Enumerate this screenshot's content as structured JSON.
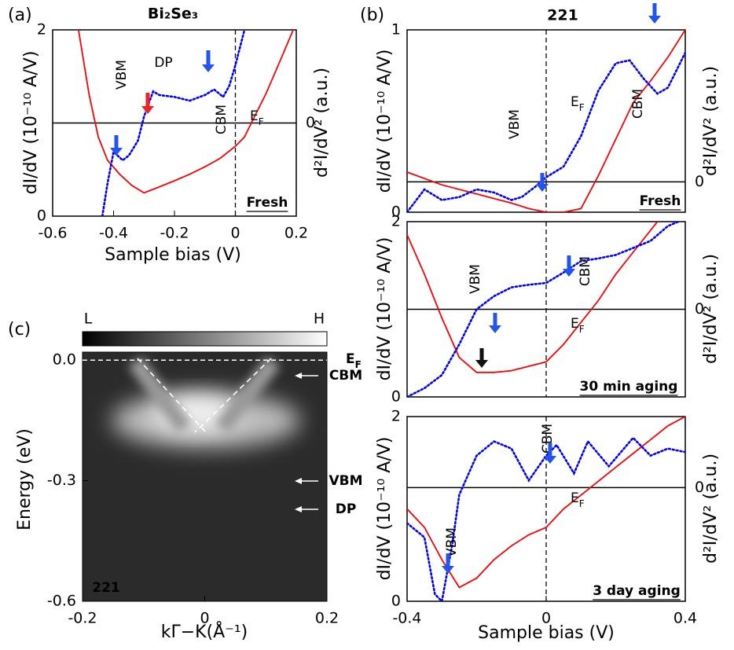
{
  "chart_data": [
    {
      "type": "line",
      "panel_label": "(a)",
      "title": "Bi₂Se₃",
      "xlabel": "Sample bias (V)",
      "ylabel": "dI/dV (10⁻¹⁰ A/V)",
      "y2label": "d²I/dV² (a.u.)",
      "xlim": [
        -0.6,
        0.2
      ],
      "xticks": [
        -0.6,
        -0.4,
        -0.2,
        0,
        0.2
      ],
      "ylim": [
        0,
        2
      ],
      "yticks": [
        0,
        2
      ],
      "y2lim": [
        -1,
        1
      ],
      "y2ticks": [
        0
      ],
      "series": [
        {
          "color": "#ff0000",
          "style": "solid",
          "x": [
            -0.515,
            -0.48,
            -0.45,
            -0.42,
            -0.38,
            -0.34,
            -0.3,
            -0.26,
            -0.2,
            -0.15,
            -0.1,
            -0.05,
            0,
            0.03,
            0.06,
            0.1,
            0.15,
            0.19
          ],
          "values": [
            2.0,
            1.3,
            0.85,
            0.6,
            0.45,
            0.33,
            0.25,
            0.3,
            0.38,
            0.45,
            0.53,
            0.62,
            0.75,
            0.85,
            1.05,
            1.31,
            1.69,
            2.0
          ]
        },
        {
          "color": "#0000ff",
          "style": "dotted",
          "axis": "y2",
          "x": [
            -0.437,
            -0.42,
            -0.4,
            -0.37,
            -0.35,
            -0.32,
            -0.3,
            -0.27,
            -0.25,
            -0.2,
            -0.15,
            -0.1,
            -0.07,
            -0.04,
            -0.02,
            0,
            0.03
          ],
          "values": [
            -1.0,
            -0.65,
            -0.31,
            -0.4,
            -0.35,
            -0.19,
            0.07,
            0.34,
            0.3,
            0.28,
            0.24,
            0.3,
            0.36,
            0.28,
            0.4,
            0.62,
            1.0
          ]
        }
      ],
      "annotations": [
        "VBM",
        "DP",
        "CBM",
        "Fresh"
      ],
      "ef_label": {
        "main": "E",
        "sub": "F"
      }
    },
    {
      "type": "line",
      "panel_label": "(b)",
      "title": "221",
      "ylabel": "dI/dV (10⁻¹⁰ A/V)",
      "y2label": "d²I/dV² (a.u.)",
      "xlim": [
        -0.4,
        0.4
      ],
      "ylim": [
        0,
        1
      ],
      "yticks": [
        0,
        1
      ],
      "y2lim": [
        -0.2,
        1
      ],
      "y2ticks": [
        0
      ],
      "series": [
        {
          "color": "#ff0000",
          "style": "solid",
          "x": [
            -0.4,
            -0.3,
            -0.2,
            -0.1,
            -0.05,
            0,
            0.05,
            0.1,
            0.15,
            0.2,
            0.25,
            0.3,
            0.35,
            0.4
          ],
          "values": [
            0.22,
            0.15,
            0.1,
            0.05,
            0.02,
            0.0,
            0.0,
            0.02,
            0.2,
            0.4,
            0.6,
            0.72,
            0.85,
            1.0
          ]
        },
        {
          "color": "#0000ff",
          "style": "dotted",
          "axis": "y2",
          "x": [
            -0.4,
            -0.35,
            -0.3,
            -0.25,
            -0.2,
            -0.15,
            -0.1,
            -0.07,
            -0.03,
            0,
            0.05,
            0.1,
            0.15,
            0.2,
            0.24,
            0.28,
            0.32,
            0.35,
            0.4
          ],
          "values": [
            -0.2,
            -0.05,
            -0.12,
            -0.1,
            -0.05,
            -0.07,
            -0.12,
            -0.1,
            -0.03,
            0.03,
            0.1,
            0.3,
            0.6,
            0.78,
            0.8,
            0.68,
            0.58,
            0.62,
            0.85
          ]
        }
      ],
      "annotations": [
        "VBM",
        "CBM",
        "Fresh"
      ],
      "ef_label": {
        "main": "E",
        "sub": "F"
      }
    },
    {
      "type": "line",
      "ylabel": "dI/dV (10⁻¹⁰ A/V)",
      "y2label": "d²I/dV² (a.u.)",
      "xlim": [
        -0.4,
        0.4
      ],
      "ylim": [
        0,
        2
      ],
      "yticks": [
        0,
        2
      ],
      "y2lim": [
        -1,
        1
      ],
      "y2ticks": [
        0
      ],
      "series": [
        {
          "color": "#ff0000",
          "style": "solid",
          "x": [
            -0.4,
            -0.35,
            -0.3,
            -0.25,
            -0.2,
            -0.15,
            -0.1,
            -0.05,
            0,
            0.05,
            0.1,
            0.15,
            0.2,
            0.25,
            0.3,
            0.32
          ],
          "values": [
            1.85,
            1.4,
            0.9,
            0.45,
            0.28,
            0.28,
            0.3,
            0.35,
            0.4,
            0.6,
            0.85,
            1.1,
            1.4,
            1.65,
            1.9,
            2.0
          ]
        },
        {
          "color": "#0000ff",
          "style": "dotted",
          "axis": "y2",
          "x": [
            -0.4,
            -0.35,
            -0.3,
            -0.25,
            -0.2,
            -0.15,
            -0.1,
            -0.05,
            0,
            0.05,
            0.1,
            0.15,
            0.2,
            0.25,
            0.3,
            0.35,
            0.38
          ],
          "values": [
            -1.0,
            -0.9,
            -0.75,
            -0.4,
            0.0,
            0.15,
            0.25,
            0.28,
            0.3,
            0.42,
            0.55,
            0.58,
            0.62,
            0.7,
            0.78,
            0.95,
            1.0
          ]
        }
      ],
      "annotations": [
        "VBM",
        "CBM",
        "30 min aging"
      ],
      "ef_label": {
        "main": "E",
        "sub": "F"
      }
    },
    {
      "type": "line",
      "xlabel": "Sample bias (V)",
      "ylabel": "dI/dV (10⁻¹⁰ A/V)",
      "y2label": "d²I/dV² (a.u.)",
      "xlim": [
        -0.4,
        0.4
      ],
      "xticks": [
        -0.4,
        0,
        0.4
      ],
      "ylim": [
        0,
        2
      ],
      "yticks": [
        0,
        2
      ],
      "y2lim": [
        -1.6,
        1
      ],
      "y2ticks": [
        0
      ],
      "series": [
        {
          "color": "#ff0000",
          "style": "solid",
          "x": [
            -0.4,
            -0.35,
            -0.3,
            -0.25,
            -0.2,
            -0.15,
            -0.1,
            -0.05,
            0,
            0.05,
            0.1,
            0.15,
            0.2,
            0.25,
            0.3,
            0.35,
            0.4
          ],
          "values": [
            1.0,
            0.8,
            0.45,
            0.15,
            0.25,
            0.45,
            0.6,
            0.72,
            0.8,
            1.0,
            1.15,
            1.3,
            1.45,
            1.6,
            1.75,
            1.9,
            2.0
          ]
        },
        {
          "color": "#0000ff",
          "style": "dotted",
          "axis": "y2",
          "x": [
            -0.4,
            -0.35,
            -0.32,
            -0.3,
            -0.27,
            -0.25,
            -0.2,
            -0.15,
            -0.1,
            -0.05,
            0,
            0.03,
            0.08,
            0.12,
            0.18,
            0.25,
            0.3,
            0.35,
            0.4
          ],
          "values": [
            -0.5,
            -0.7,
            -1.5,
            -1.6,
            -0.8,
            -0.1,
            0.45,
            0.65,
            0.55,
            0.1,
            0.45,
            0.6,
            0.2,
            0.65,
            0.3,
            0.7,
            0.45,
            0.55,
            0.5
          ]
        }
      ],
      "annotations": [
        "VBM",
        "CBM",
        "3 day aging"
      ],
      "ef_label": {
        "main": "E",
        "sub": "F"
      }
    },
    {
      "type": "image",
      "panel_label": "(c)",
      "xlabel": "kΓ−K(Å⁻¹)",
      "ylabel": "Energy (eV)",
      "xlim": [
        -0.2,
        0.2
      ],
      "xticks": [
        -0.2,
        0,
        0.2
      ],
      "ylim": [
        -0.6,
        0.02
      ],
      "yticks": [
        -0.6,
        -0.3,
        {
          "value": 0,
          "label": "0.0"
        }
      ],
      "colorbar": [
        "L",
        "H"
      ],
      "annotations": [
        "CBM",
        "VBM",
        "DP",
        "221"
      ],
      "ef_label": {
        "main": "E",
        "sub": "F"
      }
    }
  ]
}
